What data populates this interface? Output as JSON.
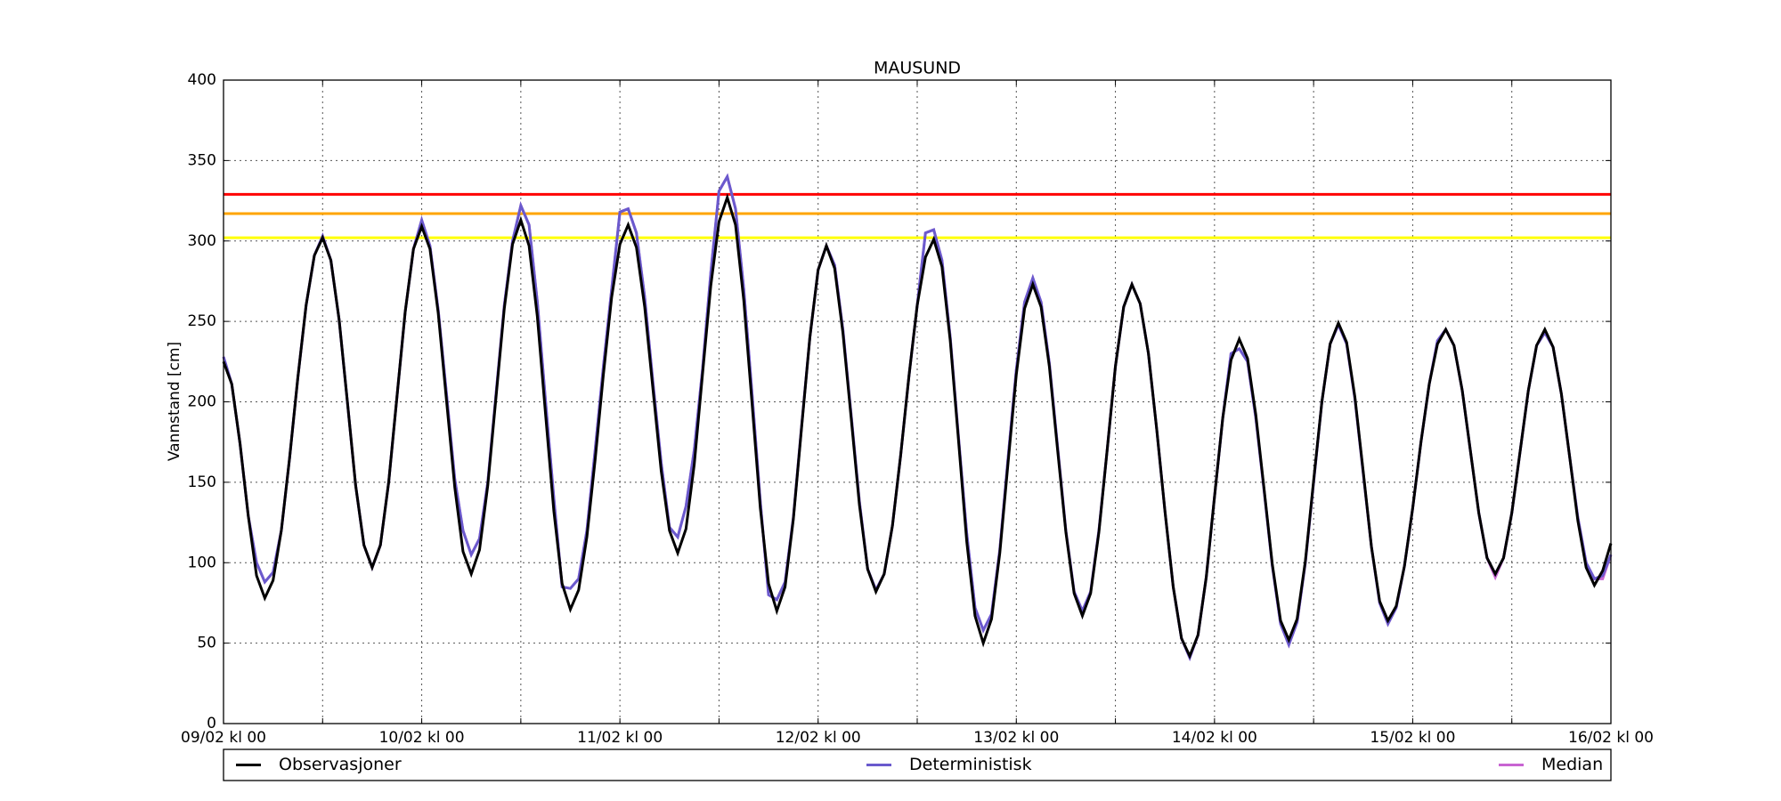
{
  "chart_data": {
    "type": "line",
    "title": "MAUSUND",
    "y_label": "Vannstand [cm]",
    "x": [
      0,
      1,
      2,
      3,
      4,
      5,
      6,
      7,
      8,
      9,
      10,
      11,
      12,
      13,
      14,
      15,
      16,
      17,
      18,
      19,
      20,
      21,
      22,
      23,
      24,
      25,
      26,
      27,
      28,
      29,
      30,
      31,
      32,
      33,
      34,
      35,
      36,
      37,
      38,
      39,
      40,
      41,
      42,
      43,
      44,
      45,
      46,
      47,
      48,
      49,
      50,
      51,
      52,
      53,
      54,
      55,
      56,
      57,
      58,
      59,
      60,
      61,
      62,
      63,
      64,
      65,
      66,
      67,
      68,
      69,
      70,
      71,
      72,
      73,
      74,
      75,
      76,
      77,
      78,
      79,
      80,
      81,
      82,
      83,
      84,
      85,
      86,
      87,
      88,
      89,
      90,
      91,
      92,
      93,
      94,
      95,
      96,
      97,
      98,
      99,
      100,
      101,
      102,
      103,
      104,
      105,
      106,
      107,
      108,
      109,
      110,
      111,
      112,
      113,
      114,
      115,
      116,
      117,
      118,
      119,
      120,
      121,
      122,
      123,
      124,
      125,
      126,
      127,
      128,
      129,
      130,
      131,
      132,
      133,
      134,
      135,
      136,
      137,
      138,
      139,
      140,
      141,
      142,
      143,
      144,
      145,
      146,
      147,
      148,
      149,
      150,
      151,
      152,
      153,
      154,
      155,
      156,
      157,
      158,
      159,
      160,
      161,
      162,
      163,
      164,
      165,
      166,
      167,
      168
    ],
    "series": [
      {
        "name": "Median",
        "color": "#c864d2",
        "values": [
          228,
          211,
          174,
          129,
          100,
          88,
          94,
          120,
          165,
          215,
          260,
          291,
          303,
          288,
          251,
          200,
          148,
          111,
          97,
          111,
          150,
          203,
          256,
          295,
          313,
          297,
          257,
          205,
          152,
          120,
          105,
          115,
          150,
          205,
          260,
          300,
          322,
          310,
          262,
          200,
          140,
          85,
          84,
          90,
          120,
          170,
          222,
          270,
          318,
          320,
          305,
          265,
          212,
          162,
          122,
          116,
          135,
          170,
          220,
          280,
          331,
          340,
          320,
          270,
          205,
          138,
          80,
          77,
          88,
          128,
          185,
          240,
          282,
          297,
          285,
          245,
          192,
          138,
          96,
          83,
          93,
          123,
          167,
          216,
          260,
          305,
          307,
          288,
          240,
          178,
          118,
          72,
          58,
          68,
          108,
          165,
          220,
          262,
          277,
          262,
          224,
          172,
          120,
          82,
          70,
          82,
          120,
          170,
          222,
          259,
          273,
          261,
          230,
          183,
          132,
          85,
          53,
          41,
          55,
          91,
          141,
          190,
          230,
          233,
          225,
          190,
          145,
          98,
          62,
          49,
          63,
          100,
          150,
          200,
          236,
          248,
          236,
          202,
          156,
          110,
          75,
          62,
          72,
          98,
          134,
          175,
          211,
          238,
          245,
          235,
          207,
          169,
          131,
          103,
          91,
          103,
          131,
          169,
          207,
          235,
          243,
          234,
          205,
          166,
          128,
          100,
          90,
          90,
          105
        ]
      },
      {
        "name": "Deterministisk",
        "color": "#6a5acd",
        "values": [
          228,
          211,
          174,
          129,
          100,
          88,
          94,
          120,
          165,
          215,
          260,
          291,
          303,
          288,
          251,
          200,
          148,
          111,
          97,
          111,
          150,
          203,
          256,
          295,
          313,
          297,
          257,
          205,
          152,
          120,
          105,
          115,
          150,
          205,
          260,
          300,
          322,
          310,
          262,
          200,
          140,
          85,
          84,
          90,
          120,
          170,
          222,
          270,
          318,
          320,
          305,
          265,
          212,
          162,
          122,
          116,
          135,
          170,
          220,
          280,
          331,
          340,
          320,
          270,
          205,
          138,
          80,
          77,
          88,
          128,
          185,
          240,
          282,
          297,
          285,
          245,
          192,
          138,
          96,
          83,
          93,
          123,
          167,
          216,
          260,
          305,
          307,
          288,
          240,
          178,
          118,
          72,
          58,
          68,
          108,
          165,
          220,
          262,
          277,
          262,
          224,
          172,
          120,
          82,
          70,
          82,
          120,
          170,
          222,
          259,
          273,
          261,
          230,
          183,
          132,
          85,
          53,
          41,
          55,
          91,
          141,
          190,
          230,
          233,
          225,
          190,
          145,
          98,
          62,
          49,
          63,
          100,
          150,
          200,
          236,
          248,
          236,
          202,
          156,
          110,
          75,
          62,
          72,
          98,
          134,
          175,
          211,
          238,
          245,
          235,
          207,
          169,
          131,
          103,
          93,
          103,
          131,
          169,
          207,
          235,
          243,
          234,
          205,
          166,
          128,
          100,
          90,
          92,
          105
        ]
      },
      {
        "name": "Observasjoner",
        "color": "#000000",
        "values": [
          225,
          211,
          174,
          129,
          92,
          78,
          89,
          120,
          165,
          215,
          260,
          291,
          302,
          288,
          251,
          200,
          148,
          111,
          97,
          111,
          150,
          203,
          256,
          295,
          309,
          295,
          255,
          201,
          147,
          107,
          93,
          108,
          148,
          203,
          258,
          298,
          313,
          297,
          253,
          192,
          132,
          87,
          71,
          83,
          116,
          164,
          217,
          265,
          298,
          310,
          296,
          259,
          208,
          157,
          120,
          106,
          121,
          161,
          217,
          272,
          312,
          327,
          310,
          263,
          199,
          134,
          87,
          70,
          85,
          127,
          184,
          240,
          282,
          297,
          283,
          243,
          190,
          136,
          96,
          82,
          93,
          123,
          167,
          216,
          260,
          290,
          301,
          284,
          238,
          176,
          113,
          67,
          50,
          65,
          106,
          162,
          217,
          258,
          273,
          259,
          222,
          170,
          119,
          81,
          67,
          81,
          119,
          170,
          222,
          259,
          273,
          261,
          230,
          183,
          132,
          85,
          53,
          42,
          55,
          91,
          141,
          190,
          226,
          239,
          227,
          192,
          146,
          99,
          64,
          52,
          65,
          101,
          151,
          200,
          236,
          249,
          237,
          203,
          157,
          110,
          76,
          64,
          73,
          98,
          134,
          175,
          211,
          236,
          245,
          235,
          207,
          169,
          131,
          103,
          93,
          103,
          131,
          169,
          207,
          235,
          245,
          234,
          205,
          166,
          126,
          97,
          86,
          95,
          112
        ]
      }
    ],
    "legend_order": [
      2,
      1,
      0
    ],
    "hlines": [
      {
        "value": 329,
        "color": "#ff0000"
      },
      {
        "value": 317,
        "color": "#ffa500"
      },
      {
        "value": 302,
        "color": "#ffff00"
      }
    ],
    "xlim": [
      0,
      168
    ],
    "xticks": [
      {
        "value": 0,
        "label": "09/02 kl 00"
      },
      {
        "value": 24,
        "label": "10/02 kl 00"
      },
      {
        "value": 48,
        "label": "11/02 kl 00"
      },
      {
        "value": 72,
        "label": "12/02 kl 00"
      },
      {
        "value": 96,
        "label": "13/02 kl 00"
      },
      {
        "value": 120,
        "label": "14/02 kl 00"
      },
      {
        "value": 144,
        "label": "15/02 kl 00"
      },
      {
        "value": 168,
        "label": "16/02 kl 00"
      }
    ],
    "xminorticks": [
      12,
      36,
      60,
      84,
      108,
      132,
      156
    ],
    "ylim": [
      0,
      400
    ],
    "yticks": [
      0,
      50,
      100,
      150,
      200,
      250,
      300,
      350,
      400
    ],
    "grid": true
  }
}
